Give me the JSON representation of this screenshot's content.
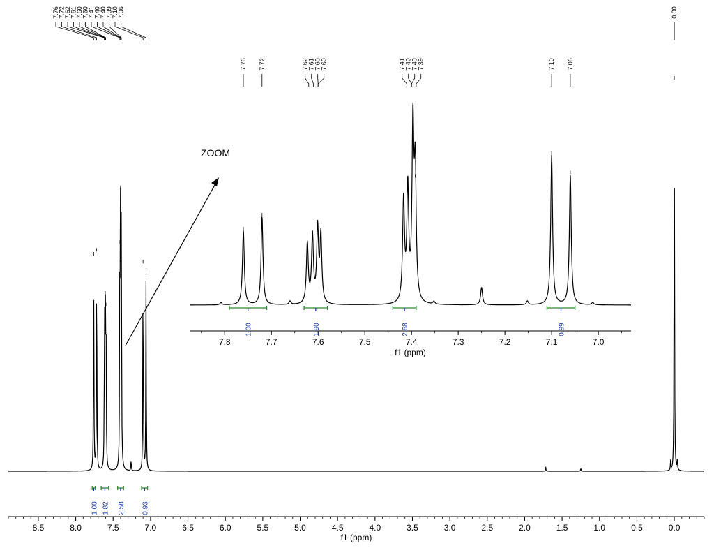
{
  "chart_data": [
    {
      "type": "line",
      "panel": "full-spectrum",
      "xlabel": "f1 (ppm)",
      "x_reversed": true,
      "xlim": [
        8.9,
        -0.4
      ],
      "x_ticks": [
        "8.5",
        "8.0",
        "7.5",
        "7.0",
        "6.5",
        "6.0",
        "5.5",
        "5.0",
        "4.5",
        "4.0",
        "3.5",
        "3.0",
        "2.5",
        "2.0",
        "1.5",
        "1.0",
        "0.5",
        "0.0"
      ],
      "peak_labels": [
        "7.76",
        "7.72",
        "7.62",
        "7.61",
        "7.60",
        "7.60",
        "7.41",
        "7.40",
        "7.40",
        "7.39",
        "7.10",
        "7.06",
        "0.00"
      ],
      "peaks": [
        {
          "ppm": 7.76,
          "height": 0.55
        },
        {
          "ppm": 7.72,
          "height": 0.56
        },
        {
          "ppm": 7.615,
          "height": 0.4
        },
        {
          "ppm": 7.605,
          "height": 0.45
        },
        {
          "ppm": 7.595,
          "height": 0.42
        },
        {
          "ppm": 7.41,
          "height": 0.58
        },
        {
          "ppm": 7.4,
          "height": 0.72
        },
        {
          "ppm": 7.39,
          "height": 0.62
        },
        {
          "ppm": 7.26,
          "height": 0.03
        },
        {
          "ppm": 7.1,
          "height": 0.53
        },
        {
          "ppm": 7.06,
          "height": 0.5
        },
        {
          "ppm": 1.72,
          "height": 0.013
        },
        {
          "ppm": 1.25,
          "height": 0.008
        },
        {
          "ppm": 0.05,
          "height": 0.025
        },
        {
          "ppm": 0.0,
          "height": 1.0
        },
        {
          "ppm": -0.04,
          "height": 0.028
        }
      ],
      "integrals": [
        {
          "from": 7.78,
          "to": 7.74,
          "value": "1.00"
        },
        {
          "from": 7.66,
          "to": 7.56,
          "value": "1.82"
        },
        {
          "from": 7.44,
          "to": 7.36,
          "value": "2.58"
        },
        {
          "from": 7.12,
          "to": 7.04,
          "value": "0.93"
        }
      ]
    },
    {
      "type": "line",
      "panel": "zoom-inset",
      "title": "ZOOM",
      "xlabel": "f1 (ppm)",
      "x_reversed": true,
      "xlim": [
        7.875,
        6.93
      ],
      "x_ticks": [
        "7.8",
        "7.7",
        "7.6",
        "7.5",
        "7.4",
        "7.3",
        "7.2",
        "7.1",
        "7.0"
      ],
      "peak_labels": [
        "7.76",
        "7.72",
        "7.62",
        "7.61",
        "7.60",
        "7.60",
        "7.41",
        "7.40",
        "7.40",
        "7.39",
        "7.10",
        "7.06"
      ],
      "peaks": [
        {
          "ppm": 7.808,
          "height": 0.014
        },
        {
          "ppm": 7.76,
          "height": 0.42
        },
        {
          "ppm": 7.72,
          "height": 0.5
        },
        {
          "ppm": 7.66,
          "height": 0.02
        },
        {
          "ppm": 7.623,
          "height": 0.34
        },
        {
          "ppm": 7.612,
          "height": 0.38
        },
        {
          "ppm": 7.601,
          "height": 0.42
        },
        {
          "ppm": 7.594,
          "height": 0.38
        },
        {
          "ppm": 7.417,
          "height": 0.58
        },
        {
          "ppm": 7.408,
          "height": 0.64
        },
        {
          "ppm": 7.397,
          "height": 0.98
        },
        {
          "ppm": 7.392,
          "height": 0.72
        },
        {
          "ppm": 7.352,
          "height": 0.016
        },
        {
          "ppm": 7.25,
          "height": 0.1
        },
        {
          "ppm": 7.152,
          "height": 0.022
        },
        {
          "ppm": 7.1,
          "height": 0.85
        },
        {
          "ppm": 7.06,
          "height": 0.74
        },
        {
          "ppm": 7.012,
          "height": 0.014
        }
      ],
      "integrals": [
        {
          "from": 7.79,
          "to": 7.71,
          "value": "1.00"
        },
        {
          "from": 7.63,
          "to": 7.58,
          "value": "1.90"
        },
        {
          "from": 7.44,
          "to": 7.39,
          "value": "2.68"
        },
        {
          "from": 7.11,
          "to": 7.05,
          "value": "0.99"
        }
      ]
    }
  ]
}
